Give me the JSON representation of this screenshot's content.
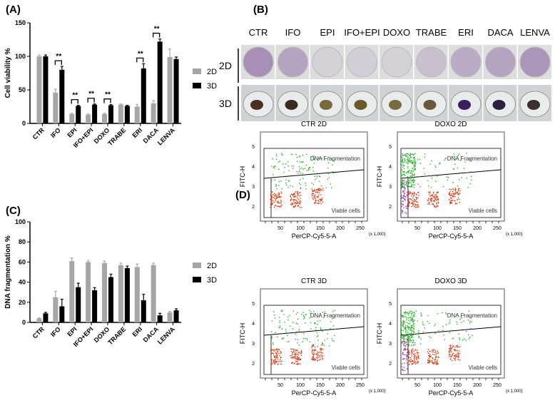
{
  "panels": {
    "A": "(A)",
    "B": "(B)",
    "C": "(C)",
    "D": "(D)"
  },
  "legend": [
    "2D",
    "3D"
  ],
  "colors": {
    "2D": "#a6a6a6",
    "3D": "#000000",
    "green": "#22b022",
    "red": "#d83a10",
    "purple": "#9a3aa0"
  },
  "chart_data": [
    {
      "type": "bar",
      "ylabel": "Cell viability %",
      "ylim": [
        0,
        150
      ],
      "yticks": [
        0,
        50,
        100,
        150
      ],
      "categories": [
        "CTR",
        "IFO",
        "EPI",
        "IFO+EPI",
        "DOXO",
        "TRABE",
        "ERI",
        "DACA",
        "LENVA"
      ],
      "series": [
        {
          "name": "2D",
          "values": [
            100,
            46,
            14,
            13,
            14,
            28,
            25,
            30,
            99
          ],
          "errors": [
            2,
            5,
            1,
            1,
            1,
            1,
            3,
            4,
            12
          ]
        },
        {
          "name": "3D",
          "values": [
            100,
            80,
            26,
            28,
            27,
            26,
            82,
            122,
            96
          ],
          "errors": [
            2,
            5,
            1,
            1,
            1,
            1,
            7,
            4,
            3
          ]
        }
      ],
      "significance": [
        {
          "category": "IFO",
          "label": "**"
        },
        {
          "category": "EPI",
          "label": "**"
        },
        {
          "category": "IFO+EPI",
          "label": "**"
        },
        {
          "category": "DOXO",
          "label": "**"
        },
        {
          "category": "ERI",
          "label": "**"
        },
        {
          "category": "DACA",
          "label": "**"
        }
      ]
    },
    {
      "type": "bar",
      "ylabel": "DNA fragmentation %",
      "ylim": [
        0,
        100
      ],
      "yticks": [
        0,
        20,
        40,
        60,
        80,
        100
      ],
      "categories": [
        "CTR",
        "IFO",
        "EPI",
        "IFO+EPI",
        "DOXO",
        "TRABE",
        "ERI",
        "DACA",
        "LENVA"
      ],
      "series": [
        {
          "name": "2D",
          "values": [
            4,
            25,
            61,
            60,
            59,
            57,
            55,
            57,
            10
          ],
          "errors": [
            0.5,
            6,
            3,
            1.5,
            2,
            2,
            3,
            2,
            1
          ]
        },
        {
          "name": "3D",
          "values": [
            9,
            16,
            35,
            32,
            45,
            54,
            22,
            7,
            12
          ],
          "errors": [
            1,
            7,
            4,
            2.5,
            3,
            2,
            6,
            2,
            1.5
          ]
        }
      ]
    }
  ],
  "wells": {
    "columns": [
      "CTR",
      "IFO",
      "EPI",
      "IFO+EPI",
      "DOXO",
      "TRABE",
      "ERI",
      "DACA",
      "LENVA"
    ],
    "rows": [
      "2D",
      "3D"
    ]
  },
  "flow": {
    "plots": [
      "CTR 2D",
      "DOXO 2D",
      "CTR 3D",
      "DOXO 3D"
    ],
    "xlabel": "PerCP-Cy5-5-A",
    "ylabel": "FITC-H",
    "xunit": "(x 1,000)",
    "xticks": [
      "50",
      "100",
      "150",
      "200",
      "250"
    ],
    "yticks": [
      "2",
      "3",
      "4",
      "5"
    ],
    "gate_top": "DNA Fragmentation",
    "gate_bottom": "Viable cells"
  }
}
